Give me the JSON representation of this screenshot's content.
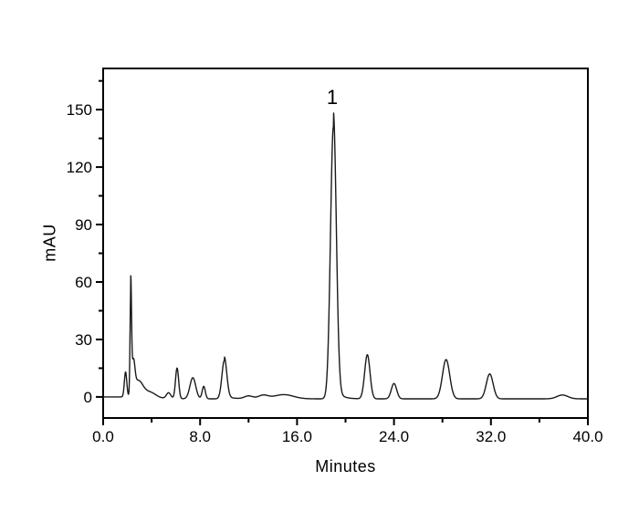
{
  "figure": {
    "background": "#ffffff",
    "trace_color": "#1a1a1a",
    "frame_color": "#000000",
    "text_color": "#000000"
  },
  "chart_data": {
    "type": "line",
    "title": "",
    "xlabel": "Minutes",
    "ylabel": "mAU",
    "xlim": [
      0,
      40
    ],
    "ylim": [
      -11,
      171.5
    ],
    "grid": false,
    "legend": "none",
    "x_major_ticks": [
      {
        "value": 0,
        "label": "0.0"
      },
      {
        "value": 8,
        "label": "8.0"
      },
      {
        "value": 16,
        "label": "16.0"
      },
      {
        "value": 24,
        "label": "24.0"
      },
      {
        "value": 32,
        "label": "32.0"
      },
      {
        "value": 40,
        "label": "40.0"
      }
    ],
    "x_minor_ticks": [
      4,
      12,
      20,
      28,
      36
    ],
    "y_major_ticks": [
      {
        "value": 0,
        "label": "0"
      },
      {
        "value": 30,
        "label": "30"
      },
      {
        "value": 60,
        "label": "60"
      },
      {
        "value": 90,
        "label": "90"
      },
      {
        "value": 120,
        "label": "120"
      },
      {
        "value": 150,
        "label": "150"
      }
    ],
    "y_minor_ticks": [
      15,
      45,
      75,
      105,
      135,
      165
    ],
    "annotation": {
      "text": "1",
      "peak_time_min": 19.0,
      "peak_height_mau": 142
    },
    "baseline": {
      "start_level_mau": 0,
      "settled_level_mau": -1,
      "transition_min": [
        2,
        4
      ]
    },
    "peaks": [
      {
        "t": 1.85,
        "h": 13,
        "w": 0.1
      },
      {
        "t": 2.28,
        "h": 54,
        "w": 0.06,
        "tail_amp": 6,
        "tail_tau": 0.9
      },
      {
        "t": 2.5,
        "h": 13,
        "w": 0.12
      },
      {
        "t": 2.95,
        "h": 6,
        "w": 0.35
      },
      {
        "t": 3.9,
        "h": 2.5,
        "w": 0.45
      },
      {
        "t": 5.4,
        "h": 3,
        "w": 0.18
      },
      {
        "t": 6.1,
        "h": 16,
        "w": 0.13
      },
      {
        "t": 7.4,
        "h": 11,
        "w": 0.24
      },
      {
        "t": 8.3,
        "h": 6.5,
        "w": 0.13
      },
      {
        "t": 10.0,
        "h": 20,
        "w": 0.2,
        "tail_amp": 2,
        "tail_tau": 0.5
      },
      {
        "t": 12.0,
        "h": 1.5,
        "w": 0.35
      },
      {
        "t": 13.2,
        "h": 1.8,
        "w": 0.4
      },
      {
        "t": 14.9,
        "h": 2.2,
        "w": 0.8
      },
      {
        "t": 19.0,
        "h": 142,
        "w": 0.24,
        "tail_amp": 8,
        "tail_tau": 0.45,
        "label": "1"
      },
      {
        "t": 21.8,
        "h": 23,
        "w": 0.22
      },
      {
        "t": 24.0,
        "h": 8,
        "w": 0.22
      },
      {
        "t": 28.3,
        "h": 20.5,
        "w": 0.3
      },
      {
        "t": 31.9,
        "h": 13,
        "w": 0.28
      },
      {
        "t": 37.9,
        "h": 2,
        "w": 0.45
      }
    ]
  }
}
